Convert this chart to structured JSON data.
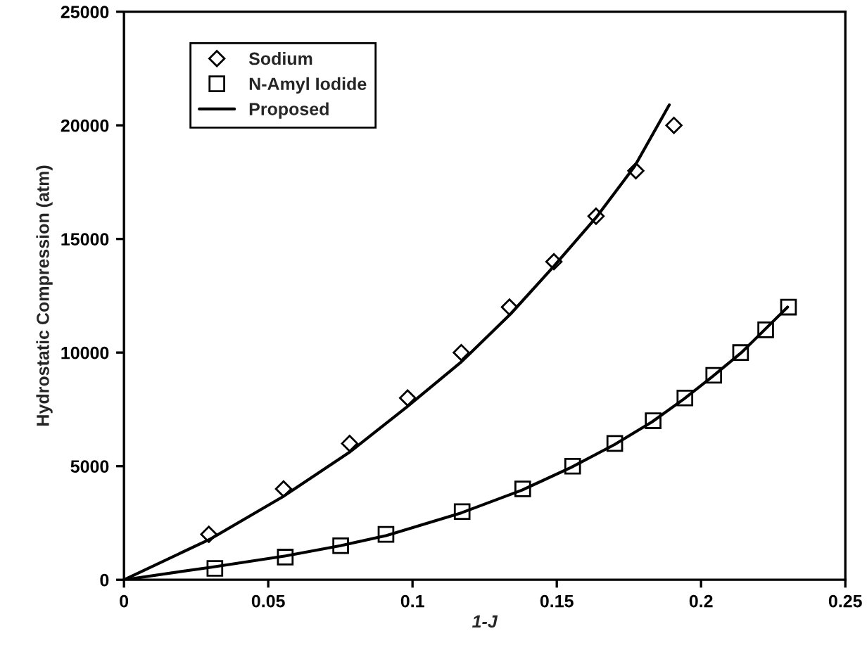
{
  "chart_data": {
    "type": "scatter",
    "xlabel": "1-J",
    "ylabel": "Hydrostatic Compression (atm)",
    "xlim": [
      0,
      0.25
    ],
    "ylim": [
      0,
      25000
    ],
    "xticks": [
      0,
      0.05,
      0.1,
      0.15,
      0.2,
      0.25
    ],
    "yticks": [
      0,
      5000,
      10000,
      15000,
      20000,
      25000
    ],
    "grid": false,
    "legend": "top left",
    "series": [
      {
        "name": "Sodium",
        "marker": "diamond",
        "color": "#000000",
        "x": [
          0.0294,
          0.0553,
          0.0782,
          0.0983,
          0.1169,
          0.1336,
          0.149,
          0.1636,
          0.1774,
          0.1906
        ],
        "values": [
          2000,
          4000,
          6000,
          8000,
          10000,
          12000,
          14000,
          16000,
          18000,
          20000
        ]
      },
      {
        "name": "N-Amyl Iodide",
        "marker": "square",
        "color": "#000000",
        "x": [
          0.0315,
          0.0559,
          0.0751,
          0.0908,
          0.1172,
          0.1382,
          0.1555,
          0.1701,
          0.1834,
          0.1944,
          0.2044,
          0.2137,
          0.2224,
          0.2303
        ],
        "values": [
          500,
          1000,
          1500,
          2000,
          3000,
          4000,
          5000,
          6000,
          7000,
          8000,
          9000,
          10000,
          11000,
          12000
        ]
      },
      {
        "name": "Proposed",
        "type": "line",
        "line_style": "solid",
        "color": "#000000",
        "x": [
          0,
          0.03,
          0.055,
          0.078,
          0.098,
          0.117,
          0.134,
          0.149,
          0.164,
          0.177,
          0.189
        ],
        "values": [
          0,
          1800,
          3650,
          5600,
          7600,
          9600,
          11700,
          13800,
          16000,
          18200,
          20900
        ]
      },
      {
        "type": "line",
        "line_style": "solid",
        "color": "#000000",
        "x": [
          0,
          0.03,
          0.056,
          0.075,
          0.091,
          0.117,
          0.138,
          0.155,
          0.17,
          0.183,
          0.194,
          0.204,
          0.214,
          0.222,
          0.23
        ],
        "values": [
          0,
          550,
          1050,
          1500,
          1950,
          2950,
          3950,
          4950,
          5950,
          6950,
          7950,
          8950,
          10000,
          11000,
          12000
        ]
      }
    ]
  }
}
